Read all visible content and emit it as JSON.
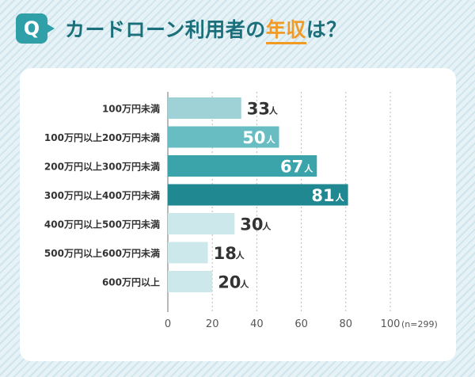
{
  "header": {
    "badge": "Q",
    "title_prefix": "カードローン利用者の",
    "title_highlight": "年収",
    "title_suffix": "は？"
  },
  "colors": {
    "accent": "#2f9fa8",
    "title": "#1a6f7a",
    "highlight": "#f19a24"
  },
  "chart_data": {
    "type": "bar",
    "orientation": "horizontal",
    "title": "カードローン利用者の年収は？",
    "categories": [
      "100万円未満",
      "100万円以上200万円未満",
      "200万円以上300万円未満",
      "300万円以上400万円未満",
      "400万円以上500万円未満",
      "500万円以上600万円未満",
      "600万円以上"
    ],
    "values": [
      33,
      50,
      67,
      81,
      30,
      18,
      20
    ],
    "unit": "人",
    "colors": [
      "#9ed2d6",
      "#68bdc3",
      "#3ba3aa",
      "#1f8890",
      "#cce8eb",
      "#cce8eb",
      "#cce8eb"
    ],
    "label_inside": [
      false,
      true,
      true,
      true,
      false,
      false,
      false
    ],
    "xlim": [
      0,
      100
    ],
    "xticks": [
      0,
      20,
      40,
      60,
      80,
      100
    ],
    "note": "(n=299)",
    "grid": true
  }
}
